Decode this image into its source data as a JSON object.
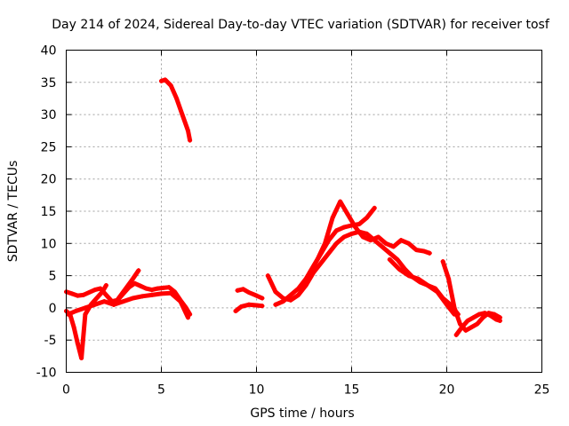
{
  "chart_data": {
    "type": "scatter",
    "title": "Day 214 of 2024, Sidereal Day-to-day VTEC variation (SDTVAR) for receiver tosf",
    "xlabel": "GPS time / hours",
    "ylabel": "SDTVAR / TECUs",
    "xlim": [
      0,
      25
    ],
    "ylim": [
      -10,
      40
    ],
    "xticks": [
      0,
      5,
      10,
      15,
      20,
      25
    ],
    "yticks": [
      -10,
      -5,
      0,
      5,
      10,
      15,
      20,
      25,
      30,
      35,
      40
    ],
    "grid": true,
    "marker": "plus",
    "color": "#ff0000",
    "series": [
      {
        "name": "seg-early-1",
        "x": [
          0.0,
          0.3,
          0.6,
          0.9,
          1.2,
          1.5,
          1.8,
          2.1,
          2.4,
          2.7,
          3.0,
          3.3,
          3.6,
          3.9,
          4.2,
          4.5,
          4.8,
          5.1,
          5.4,
          5.7,
          6.0,
          6.3,
          6.5
        ],
        "y": [
          2.5,
          2.2,
          1.9,
          2.0,
          2.4,
          2.8,
          3.0,
          2.0,
          1.0,
          1.2,
          2.2,
          3.2,
          3.8,
          3.4,
          3.0,
          2.8,
          3.0,
          3.1,
          3.2,
          2.5,
          1.2,
          0.0,
          -1.0
        ]
      },
      {
        "name": "seg-early-2",
        "x": [
          0.0,
          0.2,
          0.4,
          0.6,
          0.8,
          1.0,
          1.3,
          1.6,
          1.9,
          2.1
        ],
        "y": [
          -0.5,
          -1.0,
          -3.0,
          -5.5,
          -7.8,
          -1.0,
          0.5,
          1.5,
          2.5,
          3.5
        ]
      },
      {
        "name": "seg-early-3",
        "x": [
          0.1,
          0.5,
          1.0,
          1.5,
          2.0,
          2.5,
          3.0,
          3.5,
          3.8
        ],
        "y": [
          -1.0,
          -0.5,
          0.0,
          0.5,
          1.0,
          0.5,
          2.5,
          4.5,
          5.8
        ]
      },
      {
        "name": "seg-early-4",
        "x": [
          2.5,
          3.0,
          3.5,
          4.0,
          4.5,
          5.0,
          5.5,
          6.0,
          6.4
        ],
        "y": [
          0.5,
          1.0,
          1.5,
          1.8,
          2.0,
          2.2,
          2.3,
          1.0,
          -1.5
        ]
      },
      {
        "name": "seg-high",
        "x": [
          5.0,
          5.2,
          5.5,
          5.8,
          6.1,
          6.4,
          6.5
        ],
        "y": [
          35.2,
          35.4,
          34.5,
          32.5,
          30.0,
          27.5,
          26.0
        ]
      },
      {
        "name": "seg-mid-1",
        "x": [
          8.9,
          9.2,
          9.6,
          10.0,
          10.3
        ],
        "y": [
          -0.5,
          0.2,
          0.5,
          0.4,
          0.3
        ]
      },
      {
        "name": "seg-mid-2",
        "x": [
          9.0,
          9.3,
          9.6,
          10.0,
          10.3
        ],
        "y": [
          2.7,
          2.9,
          2.4,
          1.9,
          1.5
        ]
      },
      {
        "name": "seg-mid-3",
        "x": [
          10.6,
          11.0,
          11.4,
          11.8,
          12.2,
          12.6,
          13.0,
          13.4,
          13.8,
          14.2,
          14.6,
          15.0,
          15.4,
          15.8,
          16.2,
          16.6,
          17.0,
          17.4,
          17.8,
          18.2,
          18.6,
          19.0,
          19.4,
          19.8,
          20.2,
          20.6
        ],
        "y": [
          5.0,
          2.5,
          1.5,
          1.2,
          2.0,
          3.5,
          5.5,
          7.0,
          8.5,
          10.0,
          11.0,
          11.5,
          11.8,
          11.5,
          10.5,
          9.5,
          8.5,
          7.5,
          6.0,
          4.8,
          4.0,
          3.5,
          3.0,
          1.5,
          0.5,
          -1.0
        ]
      },
      {
        "name": "seg-mid-4",
        "x": [
          11.0,
          11.4,
          11.8,
          12.2,
          12.6,
          13.0,
          13.4,
          13.8,
          14.2,
          14.6,
          15.0,
          15.4,
          15.8,
          16.2
        ],
        "y": [
          0.5,
          1.0,
          2.0,
          3.0,
          4.5,
          6.5,
          8.5,
          10.5,
          12.0,
          12.5,
          12.8,
          13.0,
          14.0,
          15.5
        ]
      },
      {
        "name": "seg-mid-5",
        "x": [
          12.8,
          13.2,
          13.6,
          14.0,
          14.4,
          14.8,
          15.2,
          15.6,
          16.0,
          16.4,
          16.8,
          17.2,
          17.6,
          18.0,
          18.4,
          18.8,
          19.1
        ],
        "y": [
          5.5,
          7.5,
          10.0,
          14.0,
          16.5,
          14.5,
          12.5,
          11.0,
          10.5,
          11.0,
          10.0,
          9.5,
          10.5,
          10.0,
          9.0,
          8.8,
          8.5
        ]
      },
      {
        "name": "seg-mid-6",
        "x": [
          17.0,
          17.5,
          18.0,
          18.5,
          19.0,
          19.5,
          20.0,
          20.4
        ],
        "y": [
          7.5,
          6.0,
          5.0,
          4.5,
          3.5,
          2.5,
          0.5,
          -1.0
        ]
      },
      {
        "name": "seg-late-1",
        "x": [
          19.8,
          20.1,
          20.4,
          20.7,
          21.0,
          21.3,
          21.6,
          21.9,
          22.2,
          22.5,
          22.8
        ],
        "y": [
          7.2,
          4.5,
          0.0,
          -2.5,
          -3.5,
          -3.0,
          -2.5,
          -1.5,
          -0.8,
          -1.0,
          -1.5
        ]
      },
      {
        "name": "seg-late-2",
        "x": [
          20.5,
          20.8,
          21.1,
          21.4,
          21.7,
          22.0,
          22.3,
          22.6,
          22.8
        ],
        "y": [
          -4.2,
          -3.0,
          -2.0,
          -1.5,
          -1.0,
          -0.8,
          -1.2,
          -1.8,
          -2.0
        ]
      }
    ]
  }
}
